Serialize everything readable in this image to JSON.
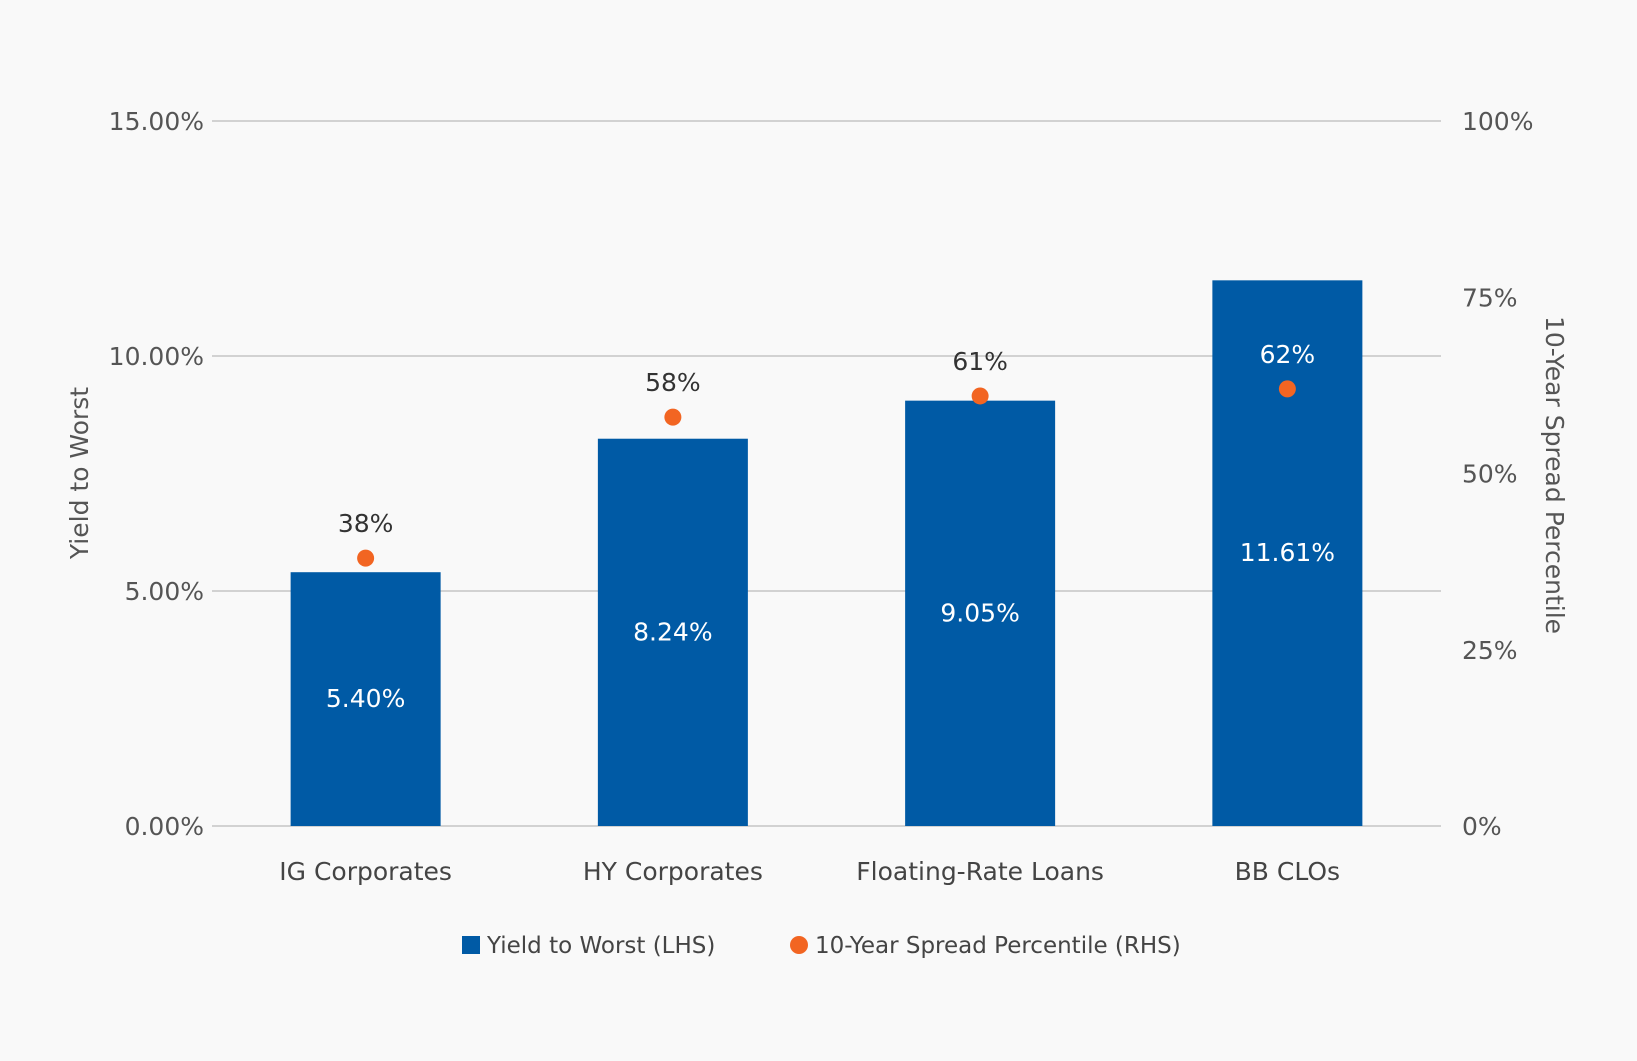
{
  "chart_data": {
    "type": "bar",
    "categories": [
      "IG Corporates",
      "HY Corporates",
      "Floating-Rate Loans",
      "BB CLOs"
    ],
    "series": [
      {
        "name": "Yield to Worst (LHS)",
        "kind": "bar",
        "axis": "left",
        "values": [
          5.4,
          8.24,
          9.05,
          11.61
        ],
        "labels": [
          "5.40%",
          "8.24%",
          "9.05%",
          "11.61%"
        ],
        "color": "#005aa5"
      },
      {
        "name": "10-Year Spread Percentile (RHS)",
        "kind": "scatter",
        "axis": "right",
        "values": [
          38,
          58,
          61,
          62
        ],
        "labels": [
          "38%",
          "58%",
          "61%",
          "62%"
        ],
        "color": "#f26522"
      }
    ],
    "ylabel": "Yield to Worst",
    "y2label": "10-Year Spread Percentile",
    "ylim": [
      0,
      15
    ],
    "y2lim": [
      0,
      100
    ],
    "yticks": [
      0,
      5,
      10,
      15
    ],
    "ytick_labels": [
      "0.00%",
      "5.00%",
      "10.00%",
      "15.00%"
    ],
    "y2ticks": [
      0,
      25,
      50,
      75,
      100
    ],
    "y2tick_labels": [
      "0%",
      "25%",
      "50%",
      "75%",
      "100%"
    ],
    "grid": true,
    "legend_position": "bottom-center"
  }
}
